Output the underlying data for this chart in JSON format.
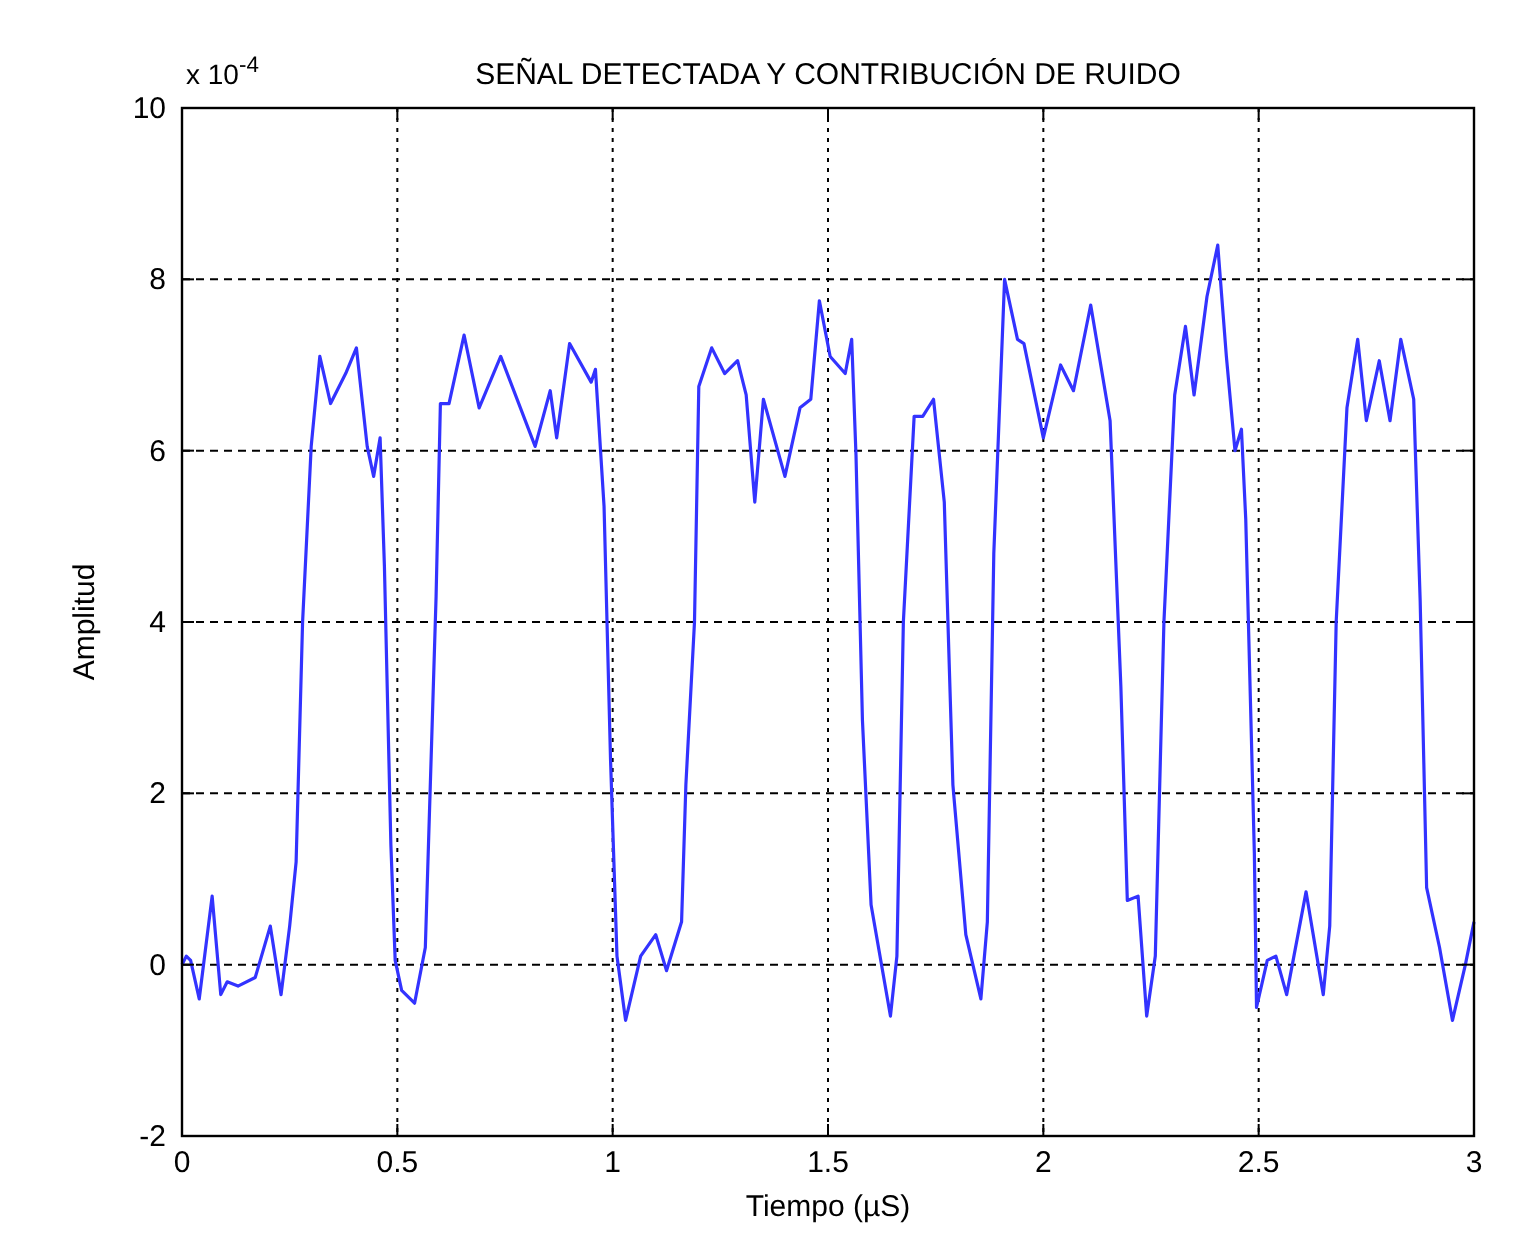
{
  "chart_data": {
    "type": "line",
    "title": "SEÑAL DETECTADA Y CONTRIBUCIÓN DE RUIDO",
    "xlabel": "Tiempo (µS)",
    "ylabel": "Amplitud",
    "annotations": [
      "x 10$^{-4}$"
    ],
    "xlim": [
      0,
      3
    ],
    "xticks": [
      0,
      0.5,
      1,
      1.5,
      2,
      2.5,
      3
    ],
    "ylim": [
      -2,
      10
    ],
    "yticks": [
      -2,
      0,
      2,
      4,
      6,
      8,
      10
    ],
    "grid": true,
    "line_style": "solid",
    "marker": "none",
    "series": [
      {
        "color": "#3333ff",
        "x": [
          0,
          0.01,
          0.02,
          0.04,
          0.07,
          0.09,
          0.105,
          0.13,
          0.17,
          0.205,
          0.23,
          0.25,
          0.265,
          0.28,
          0.3,
          0.32,
          0.345,
          0.38,
          0.405,
          0.43,
          0.445,
          0.46,
          0.47,
          0.485,
          0.495,
          0.51,
          0.54,
          0.565,
          0.59,
          0.6,
          0.62,
          0.655,
          0.69,
          0.74,
          0.82,
          0.855,
          0.87,
          0.9,
          0.95,
          0.96,
          0.98,
          0.995,
          1.01,
          1.03,
          1.065,
          1.1,
          1.125,
          1.16,
          1.17,
          1.19,
          1.2,
          1.23,
          1.26,
          1.29,
          1.31,
          1.33,
          1.35,
          1.4,
          1.435,
          1.46,
          1.48,
          1.505,
          1.54,
          1.555,
          1.565,
          1.58,
          1.6,
          1.645,
          1.66,
          1.675,
          1.7,
          1.72,
          1.745,
          1.77,
          1.79,
          1.82,
          1.855,
          1.87,
          1.885,
          1.91,
          1.94,
          1.955,
          2.0,
          2.04,
          2.07,
          2.11,
          2.155,
          2.18,
          2.195,
          2.22,
          2.24,
          2.26,
          2.28,
          2.305,
          2.33,
          2.35,
          2.38,
          2.405,
          2.425,
          2.445,
          2.46,
          2.47,
          2.49,
          2.495,
          2.52,
          2.54,
          2.565,
          2.61,
          2.65,
          2.665,
          2.68,
          2.705,
          2.73,
          2.75,
          2.78,
          2.805,
          2.83,
          2.86,
          2.875,
          2.89,
          2.92,
          2.95,
          2.98,
          3.0
        ],
        "values": [
          0,
          0.1,
          0.05,
          -0.4,
          0.8,
          -0.35,
          -0.2,
          -0.25,
          -0.15,
          0.45,
          -0.35,
          0.45,
          1.2,
          4,
          6.05,
          7.1,
          6.55,
          6.9,
          7.2,
          6.05,
          5.7,
          6.15,
          4.65,
          1.4,
          0.05,
          -0.3,
          -0.45,
          0.2,
          4.3,
          6.55,
          6.55,
          7.35,
          6.5,
          7.1,
          6.05,
          6.7,
          6.15,
          7.25,
          6.8,
          6.95,
          5.35,
          2.4,
          0.1,
          -0.65,
          0.1,
          0.35,
          -0.07,
          0.5,
          2.1,
          4,
          6.75,
          7.2,
          6.9,
          7.05,
          6.65,
          5.4,
          6.6,
          5.7,
          6.5,
          6.6,
          7.75,
          7.1,
          6.9,
          7.3,
          5.95,
          2.85,
          0.7,
          -0.6,
          0.1,
          4,
          6.4,
          6.4,
          6.6,
          5.4,
          2.1,
          0.35,
          -0.4,
          0.5,
          4.8,
          8.0,
          7.3,
          7.25,
          6.15,
          7.0,
          6.7,
          7.7,
          6.35,
          3.25,
          0.75,
          0.8,
          -0.6,
          0.1,
          4,
          6.65,
          7.45,
          6.65,
          7.8,
          8.4,
          7.1,
          6.0,
          6.25,
          5.2,
          1.3,
          -0.5,
          0.05,
          0.1,
          -0.35,
          0.85,
          -0.35,
          0.45,
          4,
          6.5,
          7.3,
          6.35,
          7.05,
          6.35,
          7.3,
          6.6,
          4.25,
          0.9,
          0.2,
          -0.65,
          0,
          0.5
        ]
      }
    ]
  }
}
